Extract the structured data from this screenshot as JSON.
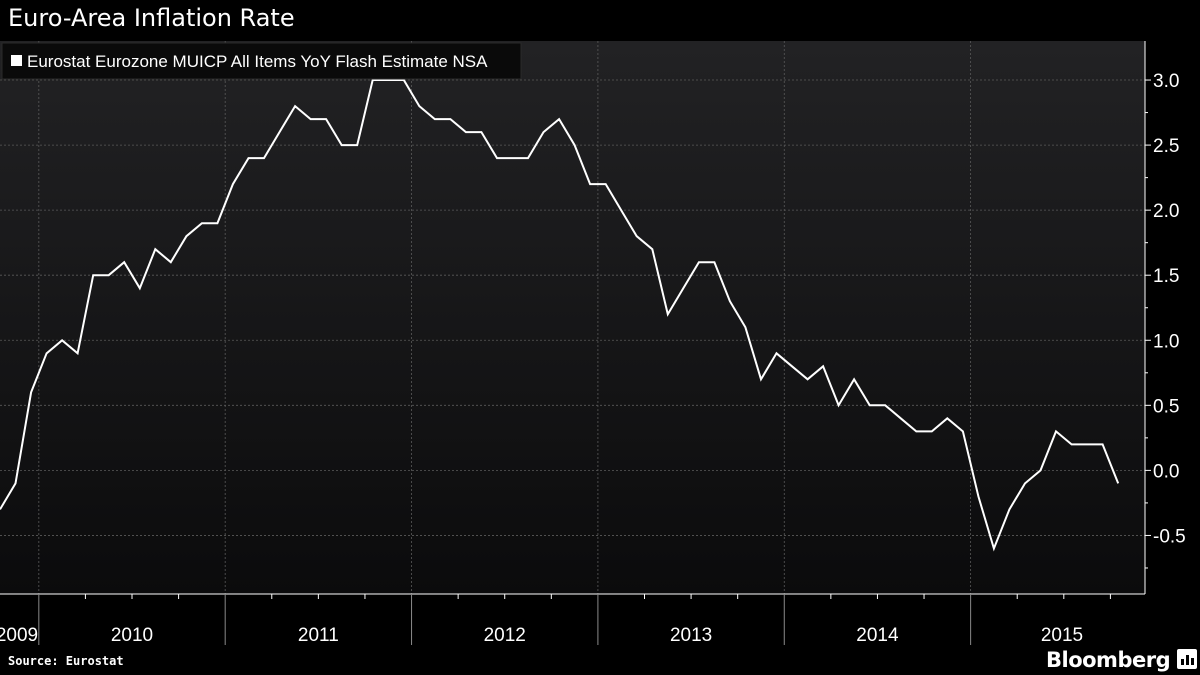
{
  "title": "Euro-Area Inflation Rate",
  "source": "Source: Eurostat",
  "brand": "Bloomberg",
  "brand_icon": "bloomberg-terminal-icon",
  "colors": {
    "background": "#000000",
    "plot_top": "#222224",
    "plot_bottom": "#0b0b0c",
    "line": "#ffffff",
    "grid": "#5a5a5a",
    "text": "#ffffff"
  },
  "chart_data": {
    "type": "line",
    "title": "Euro-Area Inflation Rate",
    "series": [
      {
        "name": "Eurostat Eurozone MUICP All Items YoY Flash Estimate NSA",
        "start": "2009-10",
        "frequency": "monthly",
        "values": [
          -0.3,
          -0.1,
          0.6,
          0.9,
          1.0,
          0.9,
          1.5,
          1.5,
          1.6,
          1.4,
          1.7,
          1.6,
          1.8,
          1.9,
          1.9,
          2.2,
          2.4,
          2.4,
          2.6,
          2.8,
          2.7,
          2.7,
          2.5,
          2.5,
          3.0,
          3.0,
          3.0,
          2.8,
          2.7,
          2.7,
          2.6,
          2.6,
          2.4,
          2.4,
          2.4,
          2.6,
          2.7,
          2.5,
          2.2,
          2.2,
          2.0,
          1.8,
          1.7,
          1.2,
          1.4,
          1.6,
          1.6,
          1.3,
          1.1,
          0.7,
          0.9,
          0.8,
          0.7,
          0.8,
          0.5,
          0.7,
          0.5,
          0.5,
          0.4,
          0.3,
          0.3,
          0.4,
          0.3,
          -0.2,
          -0.6,
          -0.3,
          -0.1,
          0.0,
          0.3,
          0.2,
          0.2,
          0.2,
          -0.1
        ]
      }
    ],
    "x_tick_labels": [
      "2009",
      "2010",
      "2011",
      "2012",
      "2013",
      "2014",
      "2015"
    ],
    "y_ticks": [
      -0.5,
      0.0,
      0.5,
      1.0,
      1.5,
      2.0,
      2.5,
      3.0
    ],
    "y_tick_labels": [
      "-0.5",
      "0.0",
      "0.5",
      "1.0",
      "1.5",
      "2.0",
      "2.5",
      "3.0"
    ],
    "ylim": [
      -0.95,
      3.3
    ],
    "y_axis_side": "right",
    "grid": true,
    "legend": {
      "position": "top-left",
      "entries": [
        "Eurostat Eurozone MUICP All Items YoY Flash Estimate NSA"
      ]
    },
    "xlabel": "",
    "ylabel": ""
  }
}
